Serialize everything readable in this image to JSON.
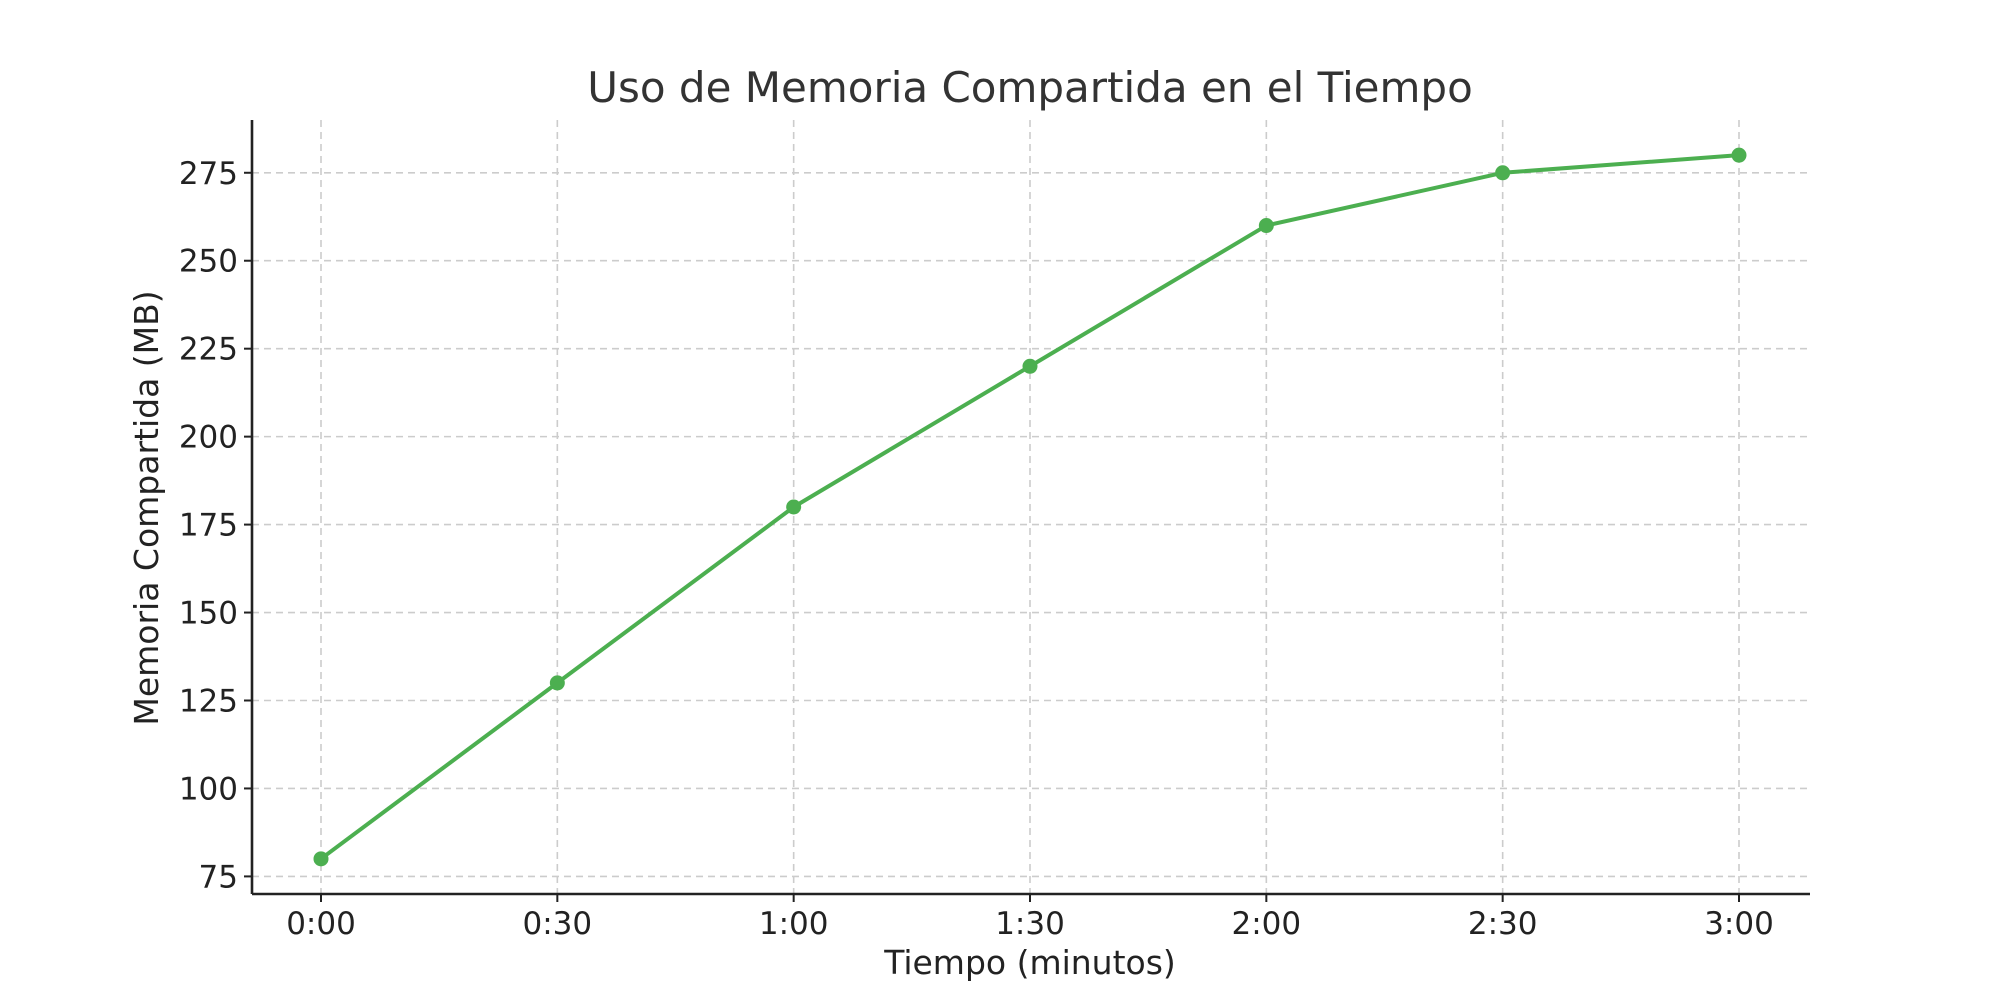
{
  "chart_data": {
    "type": "line",
    "title": "Uso de Memoria Compartida en el Tiempo",
    "xlabel": "Tiempo (minutos)",
    "ylabel": "Memoria Compartida (MB)",
    "categories": [
      "0:00",
      "0:30",
      "1:00",
      "1:30",
      "2:00",
      "2:30",
      "3:00"
    ],
    "series": [
      {
        "values": [
          80,
          130,
          180,
          220,
          260,
          275,
          280
        ],
        "color": "#4caf50",
        "marker": "circle"
      }
    ],
    "ylim": [
      70,
      290
    ],
    "yticks": [
      75,
      100,
      125,
      150,
      175,
      200,
      225,
      250,
      275
    ],
    "grid": true,
    "grid_style": "dashed",
    "legend": "none"
  }
}
